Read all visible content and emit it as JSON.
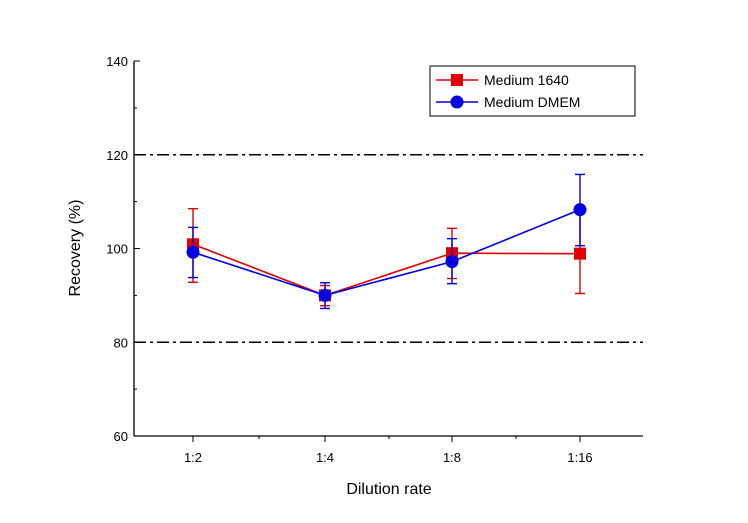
{
  "chart_data": {
    "type": "line",
    "title": "",
    "xlabel": "Dilution rate",
    "ylabel": "Recovery (%)",
    "categories": [
      "1:2",
      "1:4",
      "1:8",
      "1:16"
    ],
    "ylim": [
      60,
      140
    ],
    "yticks": [
      60,
      80,
      100,
      120,
      140
    ],
    "reference_lines": [
      80,
      120
    ],
    "legend_position": "top-right",
    "series": [
      {
        "name": "Medium 1640",
        "color": "#e00000",
        "marker": "square",
        "values": [
          100.9,
          90.0,
          99.0,
          98.9
        ],
        "err_low": [
          92.8,
          87.8,
          93.6,
          90.4
        ],
        "err_high": [
          108.5,
          92.1,
          104.3,
          108.0
        ]
      },
      {
        "name": "Medium DMEM",
        "color": "#0000e0",
        "marker": "circle",
        "values": [
          99.2,
          90.0,
          97.2,
          108.3
        ],
        "err_low": [
          93.8,
          87.2,
          92.5,
          100.6
        ],
        "err_high": [
          104.5,
          92.7,
          102.1,
          115.8
        ]
      }
    ]
  }
}
